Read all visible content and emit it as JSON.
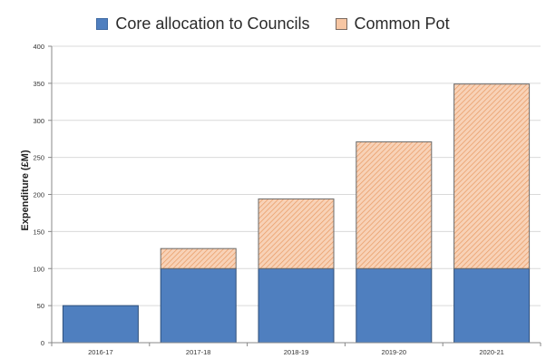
{
  "chart_data": {
    "type": "bar",
    "stacked": true,
    "categories": [
      "2016-17",
      "2017-18",
      "2018-19",
      "2019-20",
      "2020-21"
    ],
    "series": [
      {
        "name": "Core allocation to Councils",
        "values": [
          50,
          100,
          100,
          100,
          100
        ],
        "color": "#4f7fbf"
      },
      {
        "name": "Common Pot",
        "values": [
          0,
          27,
          94,
          171,
          249
        ],
        "color": "#f7c6a3",
        "pattern": "diagonal-hatch"
      }
    ],
    "totals": [
      50,
      127,
      194,
      271,
      349
    ],
    "ylabel": "Expenditure (£M)",
    "xlabel": "",
    "ylim": [
      0,
      400
    ],
    "yticks": [
      0,
      50,
      100,
      150,
      200,
      250,
      300,
      350,
      400
    ],
    "grid": true,
    "legend_position": "top"
  }
}
